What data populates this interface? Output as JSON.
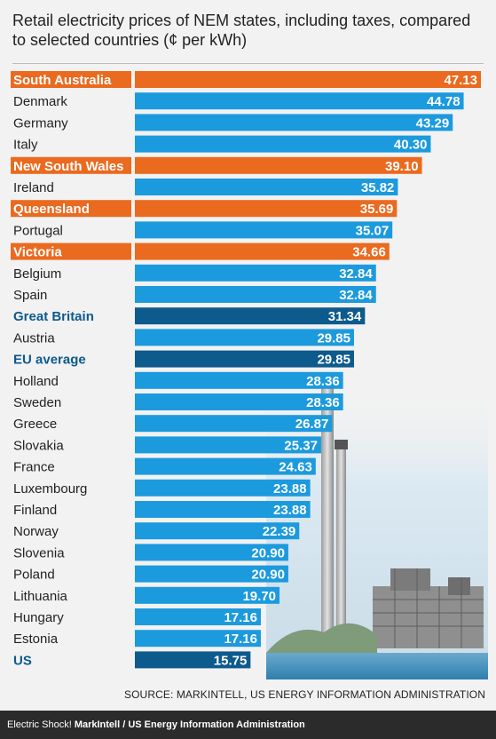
{
  "chart_data": {
    "type": "bar",
    "title": "Retail electricity prices of NEM states, including taxes, compared to selected countries (¢ per kWh)",
    "categories": [
      "South Australia",
      "Denmark",
      "Germany",
      "Italy",
      "New South Wales",
      "Ireland",
      "Queensland",
      "Portugal",
      "Victoria",
      "Belgium",
      "Spain",
      "Great Britain",
      "Austria",
      "EU average",
      "Holland",
      "Sweden",
      "Greece",
      "Slovakia",
      "France",
      "Luxembourg",
      "Finland",
      "Norway",
      "Slovenia",
      "Poland",
      "Lithuania",
      "Hungary",
      "Estonia",
      "US"
    ],
    "values": [
      47.13,
      44.78,
      43.29,
      40.3,
      39.1,
      35.82,
      35.69,
      35.07,
      34.66,
      32.84,
      32.84,
      31.34,
      29.85,
      29.85,
      28.36,
      28.36,
      26.87,
      25.37,
      24.63,
      23.88,
      23.88,
      22.39,
      20.9,
      20.9,
      19.7,
      17.16,
      17.16,
      15.75
    ],
    "value_labels": [
      "47.13",
      "44.78",
      "43.29",
      "40.30",
      "39.10",
      "35.82",
      "35.69",
      "35.07",
      "34.66",
      "32.84",
      "32.84",
      "31.34",
      "29.85",
      "29.85",
      "28.36",
      "28.36",
      "26.87",
      "25.37",
      "24.63",
      "23.88",
      "23.88",
      "22.39",
      "20.90",
      "20.90",
      "19.70",
      "17.16",
      "17.16",
      "15.75"
    ],
    "groups": [
      "nem",
      "country",
      "country",
      "country",
      "nem",
      "country",
      "nem",
      "country",
      "nem",
      "country",
      "country",
      "highlight",
      "country",
      "highlight",
      "country",
      "country",
      "country",
      "country",
      "country",
      "country",
      "country",
      "country",
      "country",
      "country",
      "country",
      "country",
      "country",
      "highlight"
    ],
    "colors": {
      "nem": "#ea6a1f",
      "country": "#1c9ade",
      "highlight": "#0d5a8c",
      "country_text": "#222222"
    },
    "xlim": [
      0,
      47.13
    ],
    "orientation": "horizontal",
    "source": "SOURCE: MARKINTELL, US ENERGY INFORMATION ADMINISTRATION"
  },
  "caption": {
    "prefix": "Electric Shock!",
    "credit": "MarkIntell / US Energy Information Administration"
  }
}
